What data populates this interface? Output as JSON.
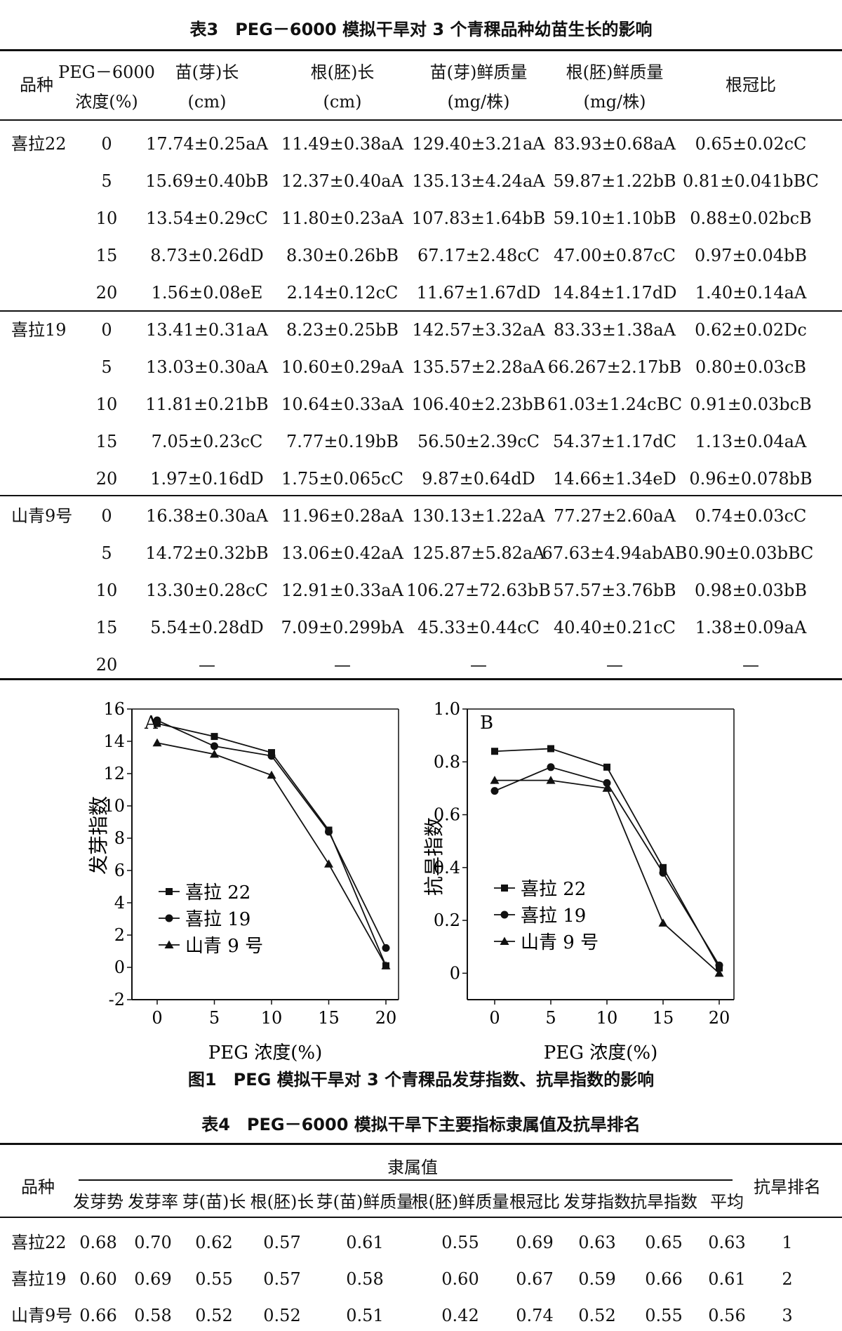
{
  "table3": {
    "title": "表3　PEG－6000 模拟干旱对 3 个青稞品种幼苗生长的影响",
    "headers": [
      [
        "品种"
      ],
      [
        "PEG－6000",
        "浓度(%)"
      ],
      [
        "苗(芽)长",
        "(cm)"
      ],
      [
        "根(胚)长",
        "(cm)"
      ],
      [
        "苗(芽)鲜质量",
        "(mg/株)"
      ],
      [
        "根(胚)鲜质量",
        "(mg/株)"
      ],
      [
        "根冠比"
      ]
    ],
    "groups": [
      {
        "variety": "喜拉22",
        "rows": [
          [
            "0",
            "17.74±0.25aA",
            "11.49±0.38aA",
            "129.40±3.21aA",
            "83.93±0.68aA",
            "0.65±0.02cC"
          ],
          [
            "5",
            "15.69±0.40bB",
            "12.37±0.40aA",
            "135.13±4.24aA",
            "59.87±1.22bB",
            "0.81±0.041bBC"
          ],
          [
            "10",
            "13.54±0.29cC",
            "11.80±0.23aA",
            "107.83±1.64bB",
            "59.10±1.10bB",
            "0.88±0.02bcB"
          ],
          [
            "15",
            "8.73±0.26dD",
            "8.30±0.26bB",
            "67.17±2.48cC",
            "47.00±0.87cC",
            "0.97±0.04bB"
          ],
          [
            "20",
            "1.56±0.08eE",
            "2.14±0.12cC",
            "11.67±1.67dD",
            "14.84±1.17dD",
            "1.40±0.14aA"
          ]
        ]
      },
      {
        "variety": "喜拉19",
        "rows": [
          [
            "0",
            "13.41±0.31aA",
            "8.23±0.25bB",
            "142.57±3.32aA",
            "83.33±1.38aA",
            "0.62±0.02Dc"
          ],
          [
            "5",
            "13.03±0.30aA",
            "10.60±0.29aA",
            "135.57±2.28aA",
            "66.267±2.17bB",
            "0.80±0.03cB"
          ],
          [
            "10",
            "11.81±0.21bB",
            "10.64±0.33aA",
            "106.40±2.23bB",
            "61.03±1.24cBC",
            "0.91±0.03bcB"
          ],
          [
            "15",
            "7.05±0.23cC",
            "7.77±0.19bB",
            "56.50±2.39cC",
            "54.37±1.17dC",
            "1.13±0.04aA"
          ],
          [
            "20",
            "1.97±0.16dD",
            "1.75±0.065cC",
            "9.87±0.64dD",
            "14.66±1.34eD",
            "0.96±0.078bB"
          ]
        ]
      },
      {
        "variety": "山青9号",
        "rows": [
          [
            "0",
            "16.38±0.30aA",
            "11.96±0.28aA",
            "130.13±1.22aA",
            "77.27±2.60aA",
            "0.74±0.03cC"
          ],
          [
            "5",
            "14.72±0.32bB",
            "13.06±0.42aA",
            "125.87±5.82aA",
            "67.63±4.94abAB",
            "0.90±0.03bBC"
          ],
          [
            "10",
            "13.30±0.28cC",
            "12.91±0.33aA",
            "106.27±72.63bB",
            "57.57±3.76bB",
            "0.98±0.03bB"
          ],
          [
            "15",
            "5.54±0.28dD",
            "7.09±0.299bA",
            "45.33±0.44cC",
            "40.40±0.21cC",
            "1.38±0.09aA"
          ],
          [
            "20",
            "—",
            "—",
            "—",
            "—",
            "—"
          ]
        ]
      }
    ]
  },
  "figure1": {
    "caption": "图1　PEG 模拟干旱对 3 个青稞品发芽指数、抗旱指数的影响",
    "xlabel": "PEG 浓度(%)",
    "legend_labels": [
      "喜拉 22",
      "喜拉 19",
      "山青 9 号"
    ]
  },
  "chart_data": [
    {
      "type": "line",
      "title": "A",
      "xlabel": "PEG 浓度(%)",
      "ylabel": "发芽指数",
      "x": [
        0,
        5,
        10,
        15,
        20
      ],
      "xticks": [
        "0",
        "5",
        "10",
        "15",
        "20"
      ],
      "ylim": [
        -2,
        16
      ],
      "yticks": [
        "-2",
        "0",
        "2",
        "4",
        "6",
        "8",
        "10",
        "12",
        "14",
        "16"
      ],
      "ytick_values": [
        -2,
        0,
        2,
        4,
        6,
        8,
        10,
        12,
        14,
        16
      ],
      "grid": false,
      "legend": "lower-left",
      "series": [
        {
          "name": "喜拉 22",
          "marker": "square",
          "values": [
            15.1,
            14.3,
            13.3,
            8.5,
            0.1
          ]
        },
        {
          "name": "喜拉 19",
          "marker": "circle",
          "values": [
            15.3,
            13.7,
            13.1,
            8.4,
            1.2
          ]
        },
        {
          "name": "山青 9 号",
          "marker": "triangle",
          "values": [
            13.9,
            13.2,
            11.9,
            6.4,
            0.1
          ]
        }
      ]
    },
    {
      "type": "line",
      "title": "B",
      "xlabel": "PEG 浓度(%)",
      "ylabel": "抗旱指数",
      "x": [
        0,
        5,
        10,
        15,
        20
      ],
      "xticks": [
        "0",
        "5",
        "10",
        "15",
        "20"
      ],
      "ylim": [
        -0.1,
        1.0
      ],
      "yticks": [
        "0",
        "0.2",
        "0.4",
        "0.6",
        "0.8",
        "1.0"
      ],
      "ytick_values": [
        0,
        0.2,
        0.4,
        0.6,
        0.8,
        1.0
      ],
      "grid": false,
      "legend": "lower-left",
      "series": [
        {
          "name": "喜拉 22",
          "marker": "square",
          "values": [
            0.84,
            0.85,
            0.78,
            0.4,
            0.02
          ]
        },
        {
          "name": "喜拉 19",
          "marker": "circle",
          "values": [
            0.69,
            0.78,
            0.72,
            0.38,
            0.03
          ]
        },
        {
          "name": "山青 9 号",
          "marker": "triangle",
          "values": [
            0.73,
            0.73,
            0.7,
            0.19,
            0.0
          ]
        }
      ]
    }
  ],
  "table4": {
    "title": "表4　PEG－6000 模拟干旱下主要指标隶属值及抗旱排名",
    "header_variety": "品种",
    "header_group": "隶属值",
    "header_rank": "抗旱排名",
    "columns": [
      "发芽势",
      "发芽率",
      "芽(苗)长",
      "根(胚)长",
      "芽(苗)鲜质量",
      "根(胚)鲜质量",
      "根冠比",
      "发芽指数",
      "抗旱指数",
      "平均"
    ],
    "rows": [
      {
        "variety": "喜拉22",
        "values": [
          "0.68",
          "0.70",
          "0.62",
          "0.57",
          "0.61",
          "0.55",
          "0.69",
          "0.63",
          "0.65",
          "0.63"
        ],
        "rank": "1"
      },
      {
        "variety": "喜拉19",
        "values": [
          "0.60",
          "0.69",
          "0.55",
          "0.57",
          "0.58",
          "0.60",
          "0.67",
          "0.59",
          "0.66",
          "0.61"
        ],
        "rank": "2"
      },
      {
        "variety": "山青9号",
        "values": [
          "0.66",
          "0.58",
          "0.52",
          "0.52",
          "0.51",
          "0.42",
          "0.74",
          "0.52",
          "0.55",
          "0.56"
        ],
        "rank": "3"
      }
    ]
  }
}
